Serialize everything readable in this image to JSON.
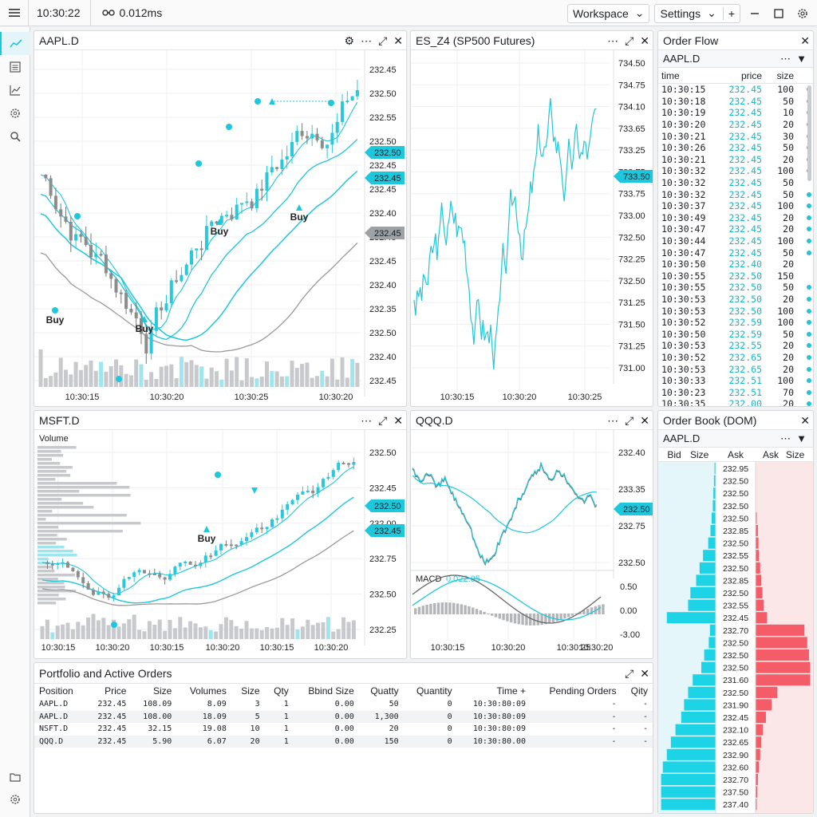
{
  "app": {
    "clock": "10:30:22",
    "latency": "0.012ms",
    "workspace_label": "Workspace",
    "settings_label": "Settings"
  },
  "colors": {
    "accent": "#1dc8dc",
    "bull": "#28c9dc",
    "bear": "#8c8c8c",
    "bid": "#1dd3e6",
    "ask": "#f45c67"
  },
  "sidebar": {
    "items": [
      "chart-icon",
      "list-icon",
      "line-chart-icon",
      "gear-icon",
      "search-icon"
    ],
    "bottom": [
      "folder-icon",
      "settings-icon"
    ]
  },
  "aapl": {
    "title": "AAPL.D",
    "prices": [
      "232.45",
      "232.50",
      "232.55",
      "232.50",
      "232.45",
      "232.45",
      "232.40",
      "232.45",
      "232.45",
      "232.40",
      "232.35",
      "232.50",
      "232.40",
      "232.45"
    ],
    "times": [
      "10:30:15",
      "10:30:20",
      "10:30:25",
      "10:30:20"
    ],
    "tag_last": "232.50",
    "tag_bid": "232.45",
    "tag_gray": "232.45",
    "markers": [
      "Buy",
      "Buy",
      "Buy",
      "Buy"
    ]
  },
  "es": {
    "title": "ES_Z4 (SP500 Futures)",
    "prices": [
      "734.50",
      "734.75",
      "734.10",
      "733.65",
      "733.25",
      "732.75",
      "733.75",
      "733.00",
      "732.50",
      "732.25",
      "732.50",
      "731.25",
      "731.50",
      "731.25",
      "731.00"
    ],
    "times": [
      "10:30:15",
      "10:30:20",
      "10:30:25"
    ],
    "tag_last": "733.50"
  },
  "msft": {
    "title": "MSFT.D",
    "volume_label": "Volume",
    "prices": [
      "232.50",
      "232.45",
      "232.00",
      "232.75",
      "232.50",
      "232.25"
    ],
    "times": [
      "10:30:15",
      "10:30:20",
      "10:30:15",
      "10:30:20",
      "10:30:15",
      "10:30:20"
    ],
    "tag_last": "232.50",
    "tag_bid": "232.45",
    "markers": [
      "Buy"
    ]
  },
  "qqq": {
    "title": "QQQ.D",
    "prices": [
      "232.40",
      "233.35",
      "232.75",
      "232.50"
    ],
    "macd_prices": [
      "0.50",
      "0.00",
      "-3.00"
    ],
    "times": [
      "10:30:15",
      "10:30:20",
      "10:30:25",
      "10:30:20"
    ],
    "tag_last": "232.50",
    "macd_label": "MACD",
    "macd_value": "0.022.05"
  },
  "order_flow": {
    "title": "Order Flow",
    "symbol": "AAPL.D",
    "headers": [
      "time",
      "price",
      "size"
    ],
    "rows": [
      [
        "10:30:15",
        "232.45",
        "100"
      ],
      [
        "10:30:18",
        "232.45",
        "50"
      ],
      [
        "10:30:19",
        "232.45",
        "10"
      ],
      [
        "10:30:20",
        "232.45",
        "20"
      ],
      [
        "10:30:21",
        "232.45",
        "30"
      ],
      [
        "10:30:26",
        "232.45",
        "50"
      ],
      [
        "10:30:21",
        "232.45",
        "20"
      ],
      [
        "10:30:32",
        "232.45",
        "100"
      ],
      [
        "10:30:32",
        "232.45",
        "50"
      ],
      [
        "10:30:32",
        "232.45",
        "50"
      ],
      [
        "10:30:37",
        "232.45",
        "100"
      ],
      [
        "10:30:49",
        "232.45",
        "20"
      ],
      [
        "10:30:47",
        "232.45",
        "20"
      ],
      [
        "10:30:44",
        "232.45",
        "100"
      ],
      [
        "10:30:47",
        "232.45",
        "50"
      ],
      [
        "10:30:50",
        "232.40",
        "20"
      ],
      [
        "10:30:55",
        "232.50",
        "150"
      ],
      [
        "10:30:55",
        "232.50",
        "50"
      ],
      [
        "10:30:53",
        "232.50",
        "20"
      ],
      [
        "10:30:53",
        "232.50",
        "100"
      ],
      [
        "10:30:52",
        "232.59",
        "100"
      ],
      [
        "10:30:50",
        "232.59",
        "50"
      ],
      [
        "10:30:53",
        "232.55",
        "20"
      ],
      [
        "10:30:52",
        "232.65",
        "20"
      ],
      [
        "10:30:53",
        "232.65",
        "20"
      ],
      [
        "10:30:33",
        "232.51",
        "100"
      ],
      [
        "10:30:23",
        "232.51",
        "70"
      ],
      [
        "10:30:35",
        "232.00",
        "20"
      ]
    ]
  },
  "dom": {
    "title": "Order Book (DOM)",
    "symbol": "AAPL.D",
    "headers": [
      "Bid",
      "Size",
      "Ask",
      "Ask",
      "Size"
    ],
    "levels": [
      {
        "price": "232.95",
        "bid": 0.02,
        "ask": 0
      },
      {
        "price": "232.50",
        "bid": 0.03,
        "ask": 0
      },
      {
        "price": "232.50",
        "bid": 0.04,
        "ask": 0
      },
      {
        "price": "232.50",
        "bid": 0.05,
        "ask": 0
      },
      {
        "price": "232.50",
        "bid": 0.07,
        "ask": 0.02
      },
      {
        "price": "232.85",
        "bid": 0.09,
        "ask": 0.04
      },
      {
        "price": "232.50",
        "bid": 0.13,
        "ask": 0.05
      },
      {
        "price": "232.55",
        "bid": 0.22,
        "ask": 0.06
      },
      {
        "price": "232.50",
        "bid": 0.28,
        "ask": 0.08
      },
      {
        "price": "232.85",
        "bid": 0.34,
        "ask": 0.1
      },
      {
        "price": "232.50",
        "bid": 0.44,
        "ask": 0.12
      },
      {
        "price": "232.55",
        "bid": 0.48,
        "ask": 0.14
      },
      {
        "price": "232.45",
        "bid": 0.85,
        "ask": 0.2
      },
      {
        "price": "232.70",
        "bid": 0.1,
        "ask": 0.85
      },
      {
        "price": "232.50",
        "bid": 0.12,
        "ask": 0.9
      },
      {
        "price": "232.50",
        "bid": 0.2,
        "ask": 0.93
      },
      {
        "price": "232.50",
        "bid": 0.25,
        "ask": 0.95
      },
      {
        "price": "231.60",
        "bid": 0.4,
        "ask": 0.95
      },
      {
        "price": "232.50",
        "bid": 0.48,
        "ask": 0.38
      },
      {
        "price": "231.90",
        "bid": 0.55,
        "ask": 0.28
      },
      {
        "price": "232.45",
        "bid": 0.6,
        "ask": 0.18
      },
      {
        "price": "232.10",
        "bid": 0.7,
        "ask": 0.13
      },
      {
        "price": "232.65",
        "bid": 0.78,
        "ask": 0.1
      },
      {
        "price": "232.90",
        "bid": 0.85,
        "ask": 0.08
      },
      {
        "price": "232.60",
        "bid": 0.92,
        "ask": 0.06
      },
      {
        "price": "232.70",
        "bid": 0.95,
        "ask": 0.04
      },
      {
        "price": "237.50",
        "bid": 0.95,
        "ask": 0.03
      },
      {
        "price": "237.40",
        "bid": 0.95,
        "ask": 0.02
      }
    ]
  },
  "portfolio": {
    "title": "Portfolio and Active Orders",
    "headers": [
      "Position",
      "Price",
      "Size",
      "Volumes",
      "Size",
      "Qty",
      "Bbind Size",
      "Quatty",
      "Quantity",
      "Time +",
      "Pending Orders",
      "Qity"
    ],
    "rows": [
      [
        "AAPL.D",
        "232.45",
        "108.09",
        "8.09",
        "3",
        "1",
        "0.00",
        "50",
        "0",
        "10:30:80:09",
        "-",
        "-"
      ],
      [
        "AAPL.D",
        "232.45",
        "108.00",
        "18.09",
        "5",
        "1",
        "0.00",
        "1,300",
        "0",
        "10:30:80:09",
        "-",
        "-"
      ],
      [
        "NSFT.D",
        "232.45",
        "32.15",
        "19.08",
        "10",
        "1",
        "0.00",
        "20",
        "0",
        "10:30:80:09",
        "-",
        "-"
      ],
      [
        "QQQ.D",
        "232.45",
        "5.90",
        "6.07",
        "20",
        "1",
        "0.00",
        "150",
        "0",
        "10:30:80.00",
        "-",
        "-"
      ]
    ]
  }
}
